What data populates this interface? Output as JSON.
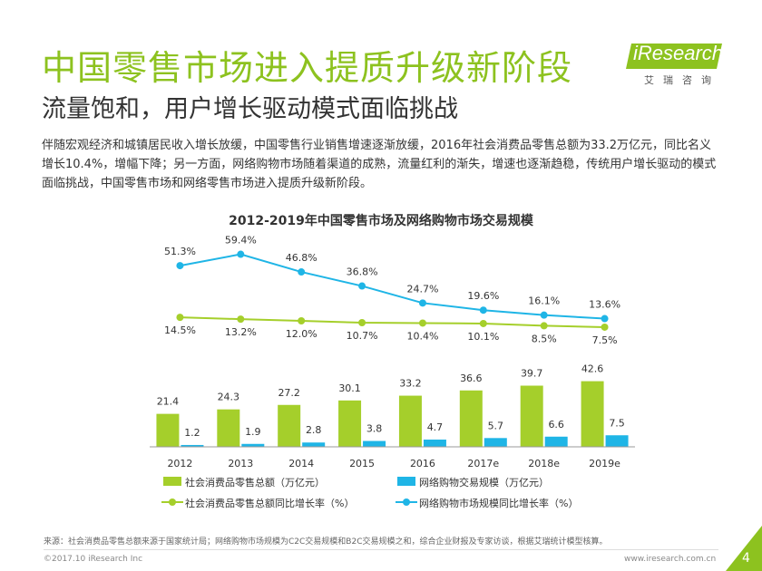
{
  "header": {
    "title": "中国零售市场进入提质升级新阶段",
    "subtitle": "流量饱和，用户增长驱动模式面临挑战"
  },
  "logo": {
    "brand": "iResearch",
    "sub": "艾瑞咨询"
  },
  "body_text": "伴随宏观经济和城镇居民收入增长放缓，中国零售行业销售增速逐渐放缓，2016年社会消费品零售总额为33.2万亿元，同比名义增长10.4%，增幅下降；另一方面，网络购物市场随着渠道的成熟，流量红利的渐失，增速也逐渐趋稳，传统用户增长驱动的模式面临挑战，中国零售市场和网络零售市场进入提质升级新阶段。",
  "chart_data": {
    "type": "bar+line",
    "title": "2012-2019年中国零售市场及网络购物市场交易规模",
    "categories": [
      "2012",
      "2013",
      "2014",
      "2015",
      "2016",
      "2017e",
      "2018e",
      "2019e"
    ],
    "bar_series": [
      {
        "name": "社会消费品零售总额（万亿元）",
        "color": "#a5cf2b",
        "values": [
          21.4,
          24.3,
          27.2,
          30.1,
          33.2,
          36.6,
          39.7,
          42.6
        ],
        "labels": [
          "21.4",
          "24.3",
          "27.2",
          "30.1",
          "33.2",
          "36.6",
          "39.7",
          "42.6"
        ]
      },
      {
        "name": "网络购物交易规模（万亿元）",
        "color": "#1fb5e6",
        "values": [
          1.2,
          1.9,
          2.8,
          3.8,
          4.7,
          5.7,
          6.6,
          7.5
        ],
        "labels": [
          "1.2",
          "1.9",
          "2.8",
          "3.8",
          "4.7",
          "5.7",
          "6.6",
          "7.5"
        ]
      }
    ],
    "line_series": [
      {
        "name": "社会消费品零售总额同比增长率（%）",
        "color": "#a5cf2b",
        "values": [
          14.5,
          13.2,
          12.0,
          10.7,
          10.4,
          10.1,
          8.5,
          7.5
        ],
        "labels": [
          "14.5%",
          "13.2%",
          "12.0%",
          "10.7%",
          "10.4%",
          "10.1%",
          "8.5%",
          "7.5%"
        ]
      },
      {
        "name": "网络购物市场规模同比增长率（%）",
        "color": "#1fb5e6",
        "values": [
          51.3,
          59.4,
          46.8,
          36.8,
          24.7,
          19.6,
          16.1,
          13.6
        ],
        "labels": [
          "51.3%",
          "59.4%",
          "46.8%",
          "36.8%",
          "24.7%",
          "19.6%",
          "16.1%",
          "13.6%"
        ]
      }
    ],
    "legend_position": "bottom"
  },
  "footer": {
    "source": "来源：社会消费品零售总额来源于国家统计局；网络购物市场规模为C2C交易规模和B2C交易规模之和，综合企业财报及专家访谈，根据艾瑞统计模型核算。",
    "copyright": "©2017.10 iResearch Inc",
    "website": "www.iresearch.com.cn",
    "page": "4"
  },
  "colors": {
    "brand_green": "#8dc21f",
    "bar_green": "#a5cf2b",
    "bar_blue": "#1fb5e6"
  }
}
